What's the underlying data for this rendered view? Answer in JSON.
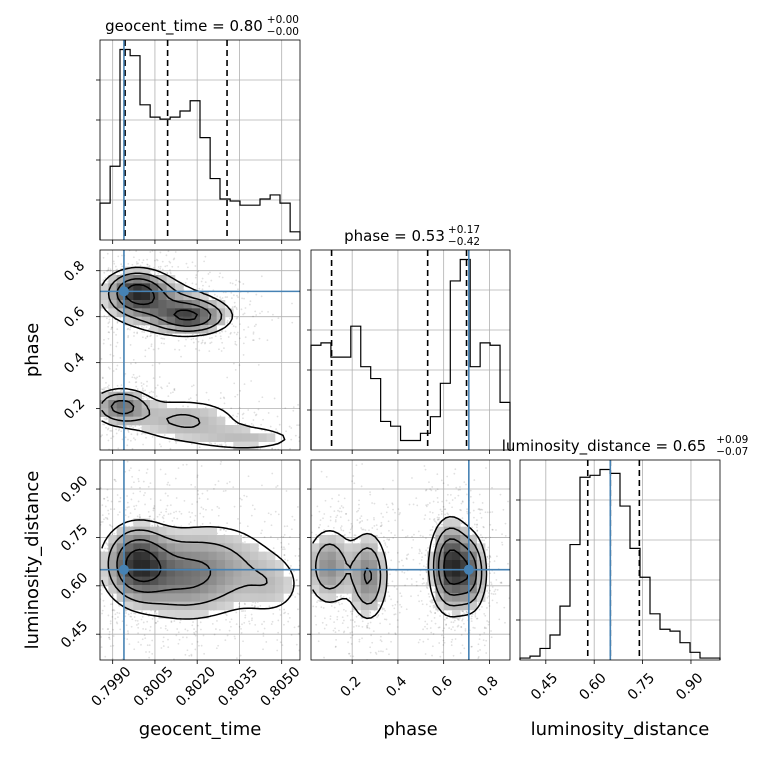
{
  "chart_data": {
    "type": "corner",
    "parameters": [
      "geocent_time",
      "phase",
      "luminosity_distance"
    ],
    "truth_color": "#4682b4",
    "truths": {
      "geocent_time": 0.7994,
      "phase": 0.71,
      "luminosity_distance": 0.65
    },
    "titles": {
      "geocent_time": {
        "label": "geocent_time = 0.80",
        "plus": "+0.00",
        "minus": "−0.00"
      },
      "phase": {
        "label": "phase = 0.53",
        "plus": "+0.17",
        "minus": "−0.42"
      },
      "luminosity_distance": {
        "label": "luminosity_distance = 0.65",
        "plus": "+0.09",
        "minus": "−0.07"
      }
    },
    "axis_labels": {
      "geocent_time": "geocent_time",
      "phase": "phase",
      "luminosity_distance": "luminosity_distance"
    },
    "ranges": {
      "geocent_time": [
        0.79855,
        0.80565
      ],
      "phase": [
        0.02,
        0.89
      ],
      "luminosity_distance": [
        0.37,
        0.99
      ]
    },
    "ticks": {
      "geocent_time": [
        {
          "value": 0.799,
          "label": "0.7990"
        },
        {
          "value": 0.8005,
          "label": "0.8005"
        },
        {
          "value": 0.802,
          "label": "0.8020"
        },
        {
          "value": 0.8035,
          "label": "0.8035"
        },
        {
          "value": 0.805,
          "label": "0.8050"
        }
      ],
      "phase": [
        {
          "value": 0.2,
          "label": "0.2"
        },
        {
          "value": 0.4,
          "label": "0.4"
        },
        {
          "value": 0.6,
          "label": "0.6"
        },
        {
          "value": 0.8,
          "label": "0.8"
        }
      ],
      "luminosity_distance": [
        {
          "value": 0.45,
          "label": "0.45"
        },
        {
          "value": 0.6,
          "label": "0.60"
        },
        {
          "value": 0.75,
          "label": "0.75"
        },
        {
          "value": 0.9,
          "label": "0.90"
        }
      ]
    },
    "quantiles": {
      "geocent_time": [
        0.79944,
        0.80095,
        0.80306
      ],
      "phase": [
        0.11,
        0.53,
        0.7
      ],
      "luminosity_distance": [
        0.58,
        0.65,
        0.74
      ]
    },
    "histograms": {
      "geocent_time": {
        "edges": [
          0.79855,
          0.79891,
          0.79926,
          0.79962,
          0.79997,
          0.80033,
          0.80068,
          0.80104,
          0.80139,
          0.80175,
          0.8021,
          0.80246,
          0.80281,
          0.80317,
          0.80352,
          0.80388,
          0.80423,
          0.80459,
          0.80494,
          0.8053,
          0.80565
        ],
        "values": [
          0.18,
          0.36,
          0.93,
          0.9,
          0.66,
          0.6,
          0.59,
          0.6,
          0.63,
          0.68,
          0.5,
          0.3,
          0.2,
          0.19,
          0.17,
          0.17,
          0.2,
          0.22,
          0.18,
          0.04
        ]
      },
      "phase": {
        "edges": [
          0.02,
          0.0635,
          0.107,
          0.1505,
          0.194,
          0.2375,
          0.281,
          0.3245,
          0.368,
          0.4115,
          0.455,
          0.4985,
          0.542,
          0.5855,
          0.629,
          0.6725,
          0.716,
          0.7595,
          0.803,
          0.8465,
          0.89
        ],
        "values": [
          0.44,
          0.45,
          0.39,
          0.39,
          0.52,
          0.35,
          0.3,
          0.12,
          0.1,
          0.04,
          0.04,
          0.07,
          0.14,
          0.28,
          0.71,
          0.8,
          0.35,
          0.45,
          0.44,
          0.2
        ]
      },
      "luminosity_distance": {
        "edges": [
          0.37,
          0.401,
          0.432,
          0.463,
          0.494,
          0.525,
          0.556,
          0.587,
          0.618,
          0.649,
          0.68,
          0.711,
          0.742,
          0.773,
          0.804,
          0.835,
          0.866,
          0.897,
          0.928,
          0.959,
          0.99
        ],
        "values": [
          0.01,
          0.02,
          0.06,
          0.13,
          0.28,
          0.6,
          0.95,
          0.96,
          0.99,
          0.97,
          0.8,
          0.58,
          0.43,
          0.24,
          0.16,
          0.15,
          0.09,
          0.04,
          0.01,
          0.01
        ]
      }
    },
    "contours": {
      "phase_vs_geocent_time": {
        "blobs": [
          {
            "cx": 0.79985,
            "cy": 0.71,
            "sx": 0.00065,
            "sy": 0.055,
            "w": 1.0
          },
          {
            "cx": 0.8018,
            "cy": 0.6,
            "sx": 0.0008,
            "sy": 0.045,
            "w": 0.9
          },
          {
            "cx": 0.8006,
            "cy": 0.65,
            "sx": 0.0011,
            "sy": 0.07,
            "w": 0.5
          },
          {
            "cx": 0.7993,
            "cy": 0.21,
            "sx": 0.0006,
            "sy": 0.045,
            "w": 0.8
          },
          {
            "cx": 0.8015,
            "cy": 0.15,
            "sx": 0.0013,
            "sy": 0.06,
            "w": 0.45
          },
          {
            "cx": 0.8038,
            "cy": 0.07,
            "sx": 0.0012,
            "sy": 0.035,
            "w": 0.35
          }
        ]
      },
      "luminosity_distance_vs_geocent_time": {
        "blobs": [
          {
            "cx": 0.79985,
            "cy": 0.67,
            "sx": 0.0007,
            "sy": 0.07,
            "w": 1.0
          },
          {
            "cx": 0.8014,
            "cy": 0.63,
            "sx": 0.0011,
            "sy": 0.08,
            "w": 0.6
          },
          {
            "cx": 0.80305,
            "cy": 0.66,
            "sx": 0.0012,
            "sy": 0.09,
            "w": 0.35
          },
          {
            "cx": 0.8047,
            "cy": 0.6,
            "sx": 0.0007,
            "sy": 0.06,
            "w": 0.25
          }
        ]
      },
      "luminosity_distance_vs_phase": {
        "blobs": [
          {
            "cx": 0.1,
            "cy": 0.66,
            "sx": 0.06,
            "sy": 0.07,
            "w": 0.55
          },
          {
            "cx": 0.27,
            "cy": 0.63,
            "sx": 0.05,
            "sy": 0.08,
            "w": 0.6
          },
          {
            "cx": 0.63,
            "cy": 0.66,
            "sx": 0.05,
            "sy": 0.08,
            "w": 1.0
          },
          {
            "cx": 0.72,
            "cy": 0.64,
            "sx": 0.04,
            "sy": 0.07,
            "w": 0.6
          }
        ]
      }
    },
    "scatter_seed": 7,
    "grid": true,
    "legend": "none"
  }
}
